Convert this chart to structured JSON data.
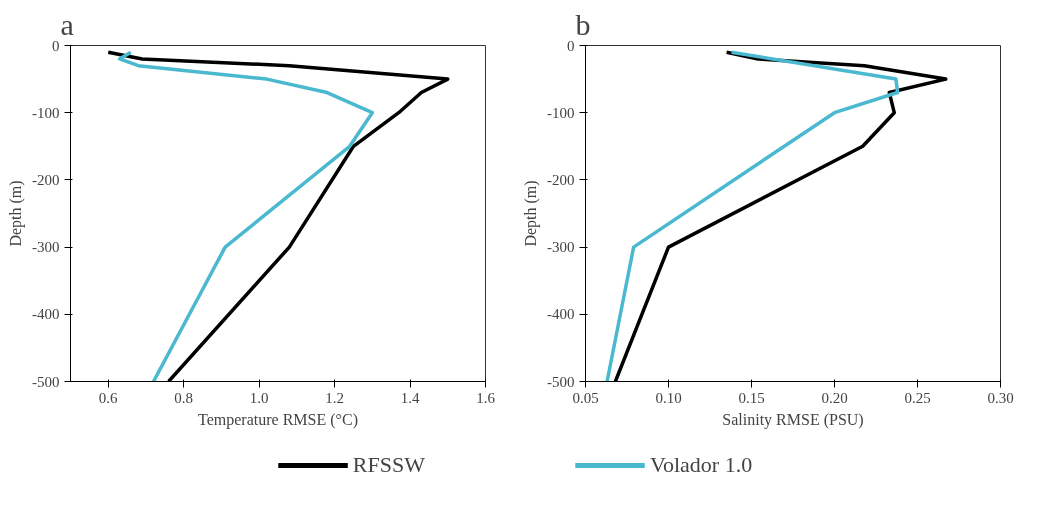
{
  "chart_data": [
    {
      "type": "line",
      "title": "a",
      "xlabel": "Temperature RMSE (°C)",
      "ylabel": "Depth (m)",
      "xlim": [
        0.5,
        1.6
      ],
      "ylim": [
        -500,
        0
      ],
      "xticks": [
        0.6,
        0.8,
        {
          "value": 1.0,
          "label": "1.0"
        },
        1.2,
        1.4,
        1.6
      ],
      "yticks": [
        0,
        -100,
        -200,
        -300,
        -400,
        -500
      ],
      "grid": false,
      "legend": "bottom",
      "line_style": "solid",
      "series": [
        {
          "name": "RFSSW",
          "color": "#000000",
          "x": [
            0.6,
            0.69,
            1.08,
            1.5,
            1.43,
            1.37,
            1.25,
            1.08,
            0.76
          ],
          "values": [
            -10,
            -20,
            -30,
            -50,
            -70,
            -100,
            -150,
            -300,
            -500
          ]
        },
        {
          "name": "Volador 1.0",
          "color": "#4ab9d0",
          "x": [
            0.66,
            0.63,
            0.68,
            1.02,
            1.18,
            1.3,
            1.24,
            0.91,
            0.72
          ],
          "values": [
            -10,
            -20,
            -30,
            -50,
            -70,
            -100,
            -150,
            -300,
            -500
          ]
        }
      ]
    },
    {
      "type": "line",
      "title": "b",
      "xlabel": "Salinity RMSE (PSU)",
      "ylabel": "Depth (m)",
      "xlim": [
        0.05,
        0.3
      ],
      "ylim": [
        -500,
        0
      ],
      "xticks": [
        0.05,
        {
          "value": 0.1,
          "label": "0.10"
        },
        0.15,
        {
          "value": 0.2,
          "label": "0.20"
        },
        0.25,
        {
          "value": 0.3,
          "label": "0.30"
        }
      ],
      "yticks": [
        0,
        -100,
        -200,
        -300,
        -400,
        -500
      ],
      "grid": false,
      "line_style": "solid",
      "series": [
        {
          "color": "#000000",
          "x": [
            0.135,
            0.154,
            0.218,
            0.267,
            0.233,
            0.236,
            0.217,
            0.1,
            0.068
          ],
          "values": [
            -10,
            -20,
            -30,
            -50,
            -70,
            -100,
            -150,
            -300,
            -500
          ]
        },
        {
          "color": "#4ab9d0",
          "x": [
            0.138,
            0.237,
            0.238,
            0.2,
            0.079,
            0.063
          ],
          "values": [
            -10,
            -50,
            -70,
            -100,
            -300,
            -500
          ]
        }
      ]
    }
  ]
}
